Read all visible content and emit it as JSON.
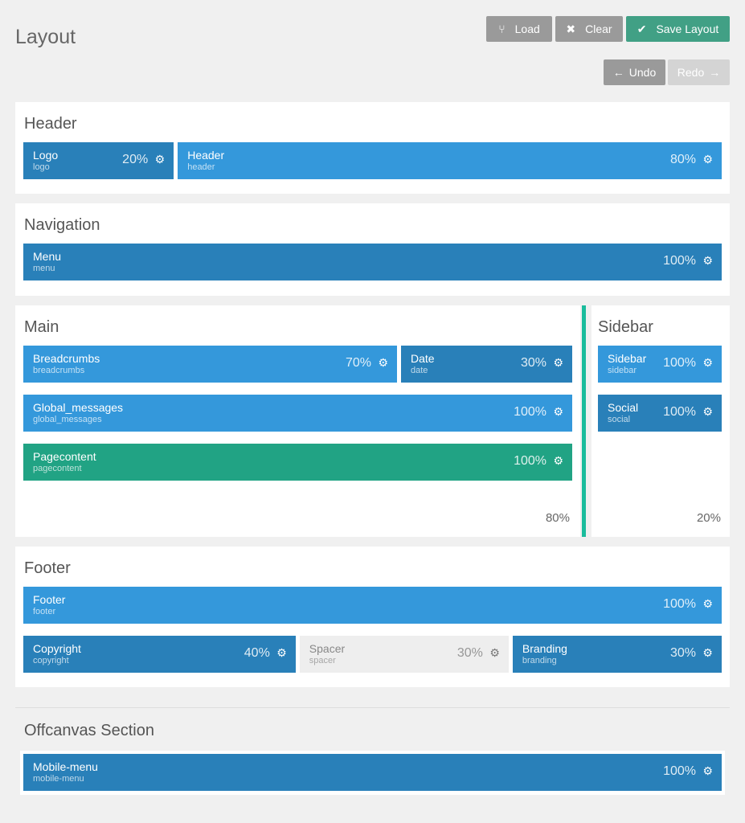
{
  "page": {
    "title": "Layout"
  },
  "toolbar": {
    "load": "Load",
    "clear": "Clear",
    "save": "Save Layout",
    "undo": "Undo",
    "redo": "Redo"
  },
  "colors": {
    "dark": "#2980b9",
    "blue": "#3498db",
    "teal": "#21a384",
    "divider": "#1abc9c",
    "save": "#41a085"
  },
  "sections": {
    "header": {
      "title": "Header",
      "blocks": [
        {
          "name": "Logo",
          "id": "logo",
          "pct": "20%"
        },
        {
          "name": "Header",
          "id": "header",
          "pct": "80%"
        }
      ]
    },
    "navigation": {
      "title": "Navigation",
      "blocks": [
        {
          "name": "Menu",
          "id": "menu",
          "pct": "100%"
        }
      ]
    },
    "main": {
      "title": "Main",
      "width": "80%",
      "blocks": [
        {
          "name": "Breadcrumbs",
          "id": "breadcrumbs",
          "pct": "70%"
        },
        {
          "name": "Date",
          "id": "date",
          "pct": "30%"
        },
        {
          "name": "Global_messages",
          "id": "global_messages",
          "pct": "100%"
        },
        {
          "name": "Pagecontent",
          "id": "pagecontent",
          "pct": "100%"
        }
      ]
    },
    "sidebar": {
      "title": "Sidebar",
      "width": "20%",
      "blocks": [
        {
          "name": "Sidebar",
          "id": "sidebar",
          "pct": "100%"
        },
        {
          "name": "Social",
          "id": "social",
          "pct": "100%"
        }
      ]
    },
    "footer": {
      "title": "Footer",
      "blocks": [
        {
          "name": "Footer",
          "id": "footer",
          "pct": "100%"
        },
        {
          "name": "Copyright",
          "id": "copyright",
          "pct": "40%"
        },
        {
          "name": "Spacer",
          "id": "spacer",
          "pct": "30%"
        },
        {
          "name": "Branding",
          "id": "branding",
          "pct": "30%"
        }
      ]
    },
    "offcanvas": {
      "title": "Offcanvas Section",
      "blocks": [
        {
          "name": "Mobile-menu",
          "id": "mobile-menu",
          "pct": "100%"
        }
      ]
    }
  }
}
